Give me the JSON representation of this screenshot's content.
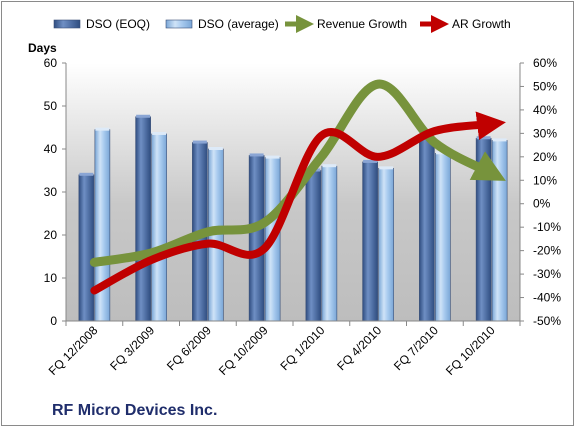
{
  "chart_data": {
    "type": "bar",
    "title": "RF Micro Devices Inc.",
    "categories": [
      "FQ 12/2008",
      "FQ 3/2009",
      "FQ 6/2009",
      "FQ 10/2009",
      "FQ 1/2010",
      "FQ 4/2010",
      "FQ 7/2010",
      "FQ 10/2010"
    ],
    "y_left": {
      "label": "Days",
      "range": [
        0,
        60
      ],
      "ticks": [
        0,
        10,
        20,
        30,
        40,
        50,
        60
      ]
    },
    "y_right": {
      "label": "",
      "range": [
        -50,
        60
      ],
      "ticks": [
        "-50%",
        "-40%",
        "-30%",
        "-20%",
        "-10%",
        "0%",
        "10%",
        "20%",
        "30%",
        "40%",
        "50%",
        "60%"
      ]
    },
    "series": [
      {
        "name": "DSO (EOQ)",
        "type": "bar",
        "axis": "left",
        "color": "#4f6fa4",
        "values": [
          34,
          47.5,
          41.5,
          38.5,
          35,
          37,
          42.5,
          42.5
        ]
      },
      {
        "name": "DSO (average)",
        "type": "bar",
        "axis": "left",
        "color": "#9ec3ea",
        "values": [
          44.5,
          43.5,
          40,
          38,
          36,
          35.5,
          39,
          42
        ]
      },
      {
        "name": "Revenue Growth",
        "type": "line",
        "axis": "right",
        "color": "#77933c",
        "values": [
          -25,
          -21,
          -12,
          -8,
          20,
          51,
          26,
          13
        ]
      },
      {
        "name": "AR Growth",
        "type": "line",
        "axis": "right",
        "color": "#c00000",
        "values": [
          -37,
          -24,
          -17,
          -19,
          29,
          20,
          31,
          34
        ]
      }
    ],
    "legend_position": "top",
    "grid": false
  }
}
